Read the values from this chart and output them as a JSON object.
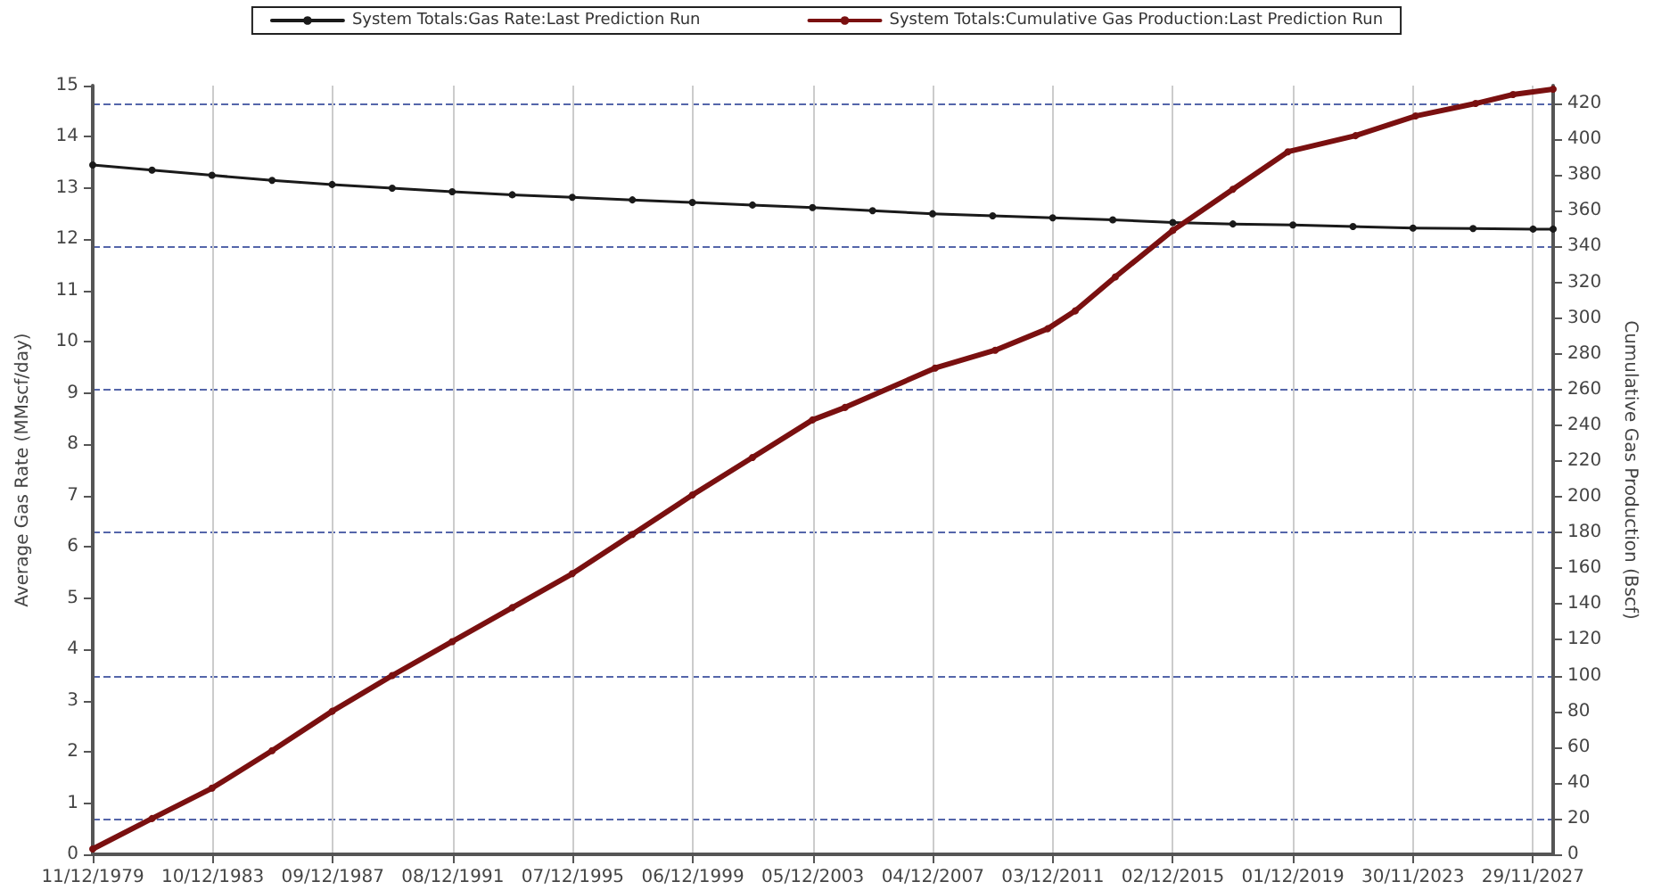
{
  "chart_data": {
    "type": "line",
    "ylabel": "Average Gas Rate (MMscf/day)",
    "y2label": "Cumulative Gas Production (Bscf)",
    "xlim": [
      "1979-12-11",
      "2028-08-01"
    ],
    "xticks": [
      {
        "value": "1979-12-11",
        "label": "11/12/1979"
      },
      {
        "value": "1983-12-10",
        "label": "10/12/1983"
      },
      {
        "value": "1987-12-09",
        "label": "09/12/1987"
      },
      {
        "value": "1991-12-08",
        "label": "08/12/1991"
      },
      {
        "value": "1995-12-07",
        "label": "07/12/1995"
      },
      {
        "value": "1999-12-06",
        "label": "06/12/1999"
      },
      {
        "value": "2003-12-05",
        "label": "05/12/2003"
      },
      {
        "value": "2007-12-04",
        "label": "04/12/2007"
      },
      {
        "value": "2011-12-03",
        "label": "03/12/2011"
      },
      {
        "value": "2015-12-02",
        "label": "02/12/2015"
      },
      {
        "value": "2019-12-01",
        "label": "01/12/2019"
      },
      {
        "value": "2023-11-30",
        "label": "30/11/2023"
      },
      {
        "value": "2027-11-29",
        "label": "29/11/2027"
      }
    ],
    "ylim": [
      0,
      15
    ],
    "yticks": [
      0,
      1,
      2,
      3,
      4,
      5,
      6,
      7,
      8,
      9,
      10,
      11,
      12,
      13,
      14,
      15
    ],
    "y2lim": [
      0,
      430
    ],
    "y2ticks": [
      0,
      20,
      40,
      60,
      80,
      100,
      120,
      140,
      160,
      180,
      200,
      220,
      240,
      260,
      280,
      300,
      320,
      340,
      360,
      380,
      400,
      420
    ],
    "grid": true,
    "legend": "top",
    "marker": "circle",
    "line_style": "solid",
    "series": [
      {
        "name": "System Totals:Gas Rate:Last Prediction Run",
        "color": "#1a1a1a",
        "x": [
          "1979-12-11",
          "1981-12",
          "1983-12",
          "1985-12",
          "1987-12",
          "1989-12",
          "1991-12",
          "1993-12",
          "1995-12",
          "1997-12",
          "1999-12",
          "2001-12",
          "2003-12",
          "2005-12",
          "2007-12",
          "2009-12",
          "2011-12",
          "2013-12",
          "2015-12",
          "2017-12",
          "2019-12",
          "2021-12",
          "2023-12",
          "2025-12",
          "2027-12",
          "2028-08"
        ],
        "values": [
          13.45,
          13.35,
          13.25,
          13.15,
          13.07,
          13.0,
          12.93,
          12.87,
          12.82,
          12.77,
          12.72,
          12.67,
          12.62,
          12.56,
          12.5,
          12.46,
          12.42,
          12.38,
          12.33,
          12.3,
          12.28,
          12.25,
          12.22,
          12.21,
          12.2,
          12.2
        ]
      },
      {
        "name": "System Totals:Cumulative Gas Production:Last Prediction Run",
        "color": "#7a1010",
        "axis": "y2",
        "x": [
          "1979-12-11",
          "1981-12",
          "1983-12",
          "1985-12",
          "1987-12",
          "1989-12",
          "1991-12",
          "1993-12",
          "1995-12",
          "1997-12",
          "1999-12",
          "2001-12",
          "2003-12",
          "2005-01",
          "2008-01",
          "2010-01",
          "2011-10",
          "2012-09",
          "2014-01",
          "2015-12",
          "2017-12",
          "2019-10",
          "2022-01",
          "2024-01",
          "2026-01",
          "2027-04",
          "2028-08"
        ],
        "values": [
          3,
          20,
          37,
          58,
          80,
          100,
          119,
          138,
          157,
          179,
          201,
          222,
          243,
          250,
          272,
          282,
          294,
          304,
          323,
          349,
          372,
          393,
          402,
          413,
          420,
          425,
          428
        ]
      }
    ]
  }
}
